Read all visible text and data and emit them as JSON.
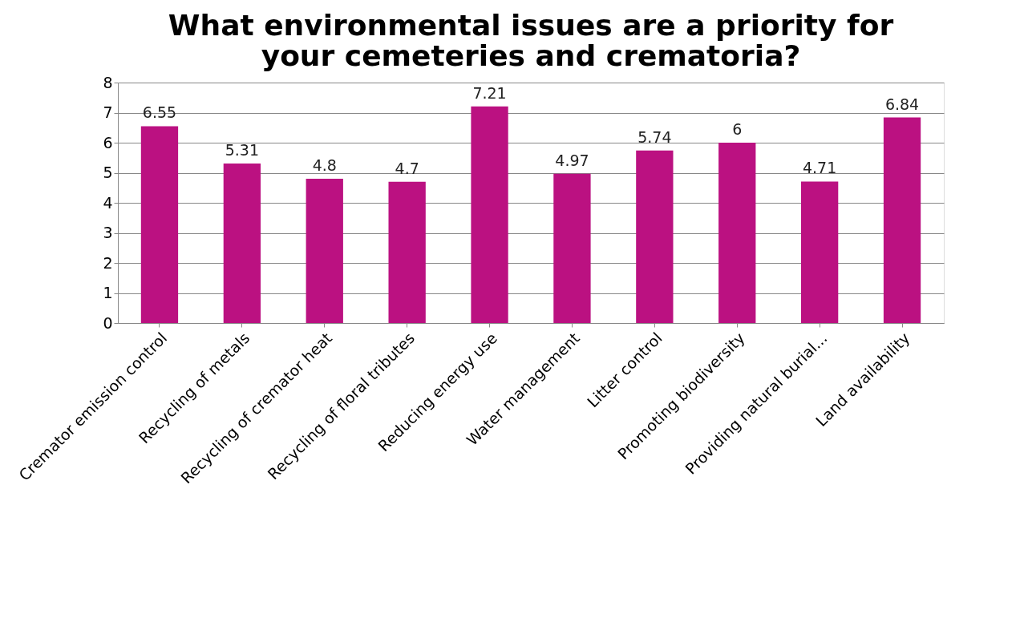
{
  "chart_data": {
    "type": "bar",
    "title": "What environmental issues are a priority for your cemeteries and crematoria?",
    "categories": [
      "Cremator emission control",
      "Recycling of metals",
      "Recycling of cremator heat",
      "Recycling of floral tributes",
      "Reducing energy use",
      "Water management",
      "Litter control",
      "Promoting biodiversity",
      "Providing natural burial...",
      "Land availability"
    ],
    "values": [
      6.55,
      5.31,
      4.8,
      4.7,
      7.21,
      4.97,
      5.74,
      6,
      4.71,
      6.84
    ],
    "color": "#bb1181",
    "ylim": [
      0,
      8
    ],
    "yticks": [
      0,
      1,
      2,
      3,
      4,
      5,
      6,
      7,
      8
    ],
    "grid": "y",
    "data_labels": true
  }
}
